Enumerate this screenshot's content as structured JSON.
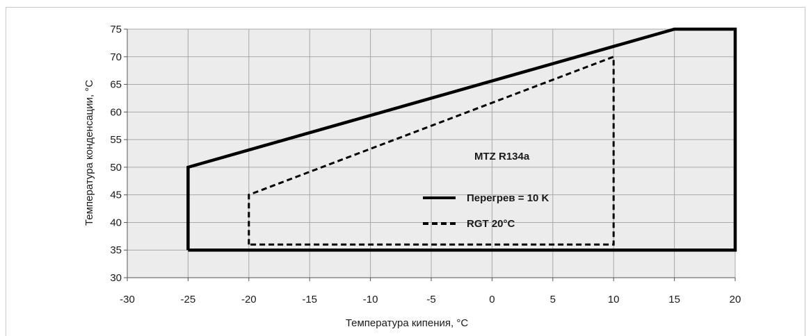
{
  "chart_data": {
    "type": "line",
    "xlabel": "Температура кипения, °C",
    "ylabel": "Температура конденсации, °C",
    "xlim": [
      -30,
      20
    ],
    "ylim": [
      30,
      75
    ],
    "xticks": [
      -30,
      -25,
      -20,
      -15,
      -10,
      -5,
      0,
      5,
      10,
      15,
      20
    ],
    "yticks": [
      30,
      35,
      40,
      45,
      50,
      55,
      60,
      65,
      70,
      75
    ],
    "grid": true,
    "background_color": "#ececec",
    "grid_color": "#a8a8a8",
    "annotation": "MTZ R134a",
    "legend_position": "center-right",
    "series": [
      {
        "name": "Перегрев = 10 K",
        "style": "solid",
        "x": [
          -25,
          -25,
          15,
          20,
          20,
          -25
        ],
        "y": [
          35,
          50,
          75,
          75,
          35,
          35
        ]
      },
      {
        "name": "RGT 20°C",
        "style": "dashed",
        "x": [
          -20,
          -20,
          10,
          10,
          -20
        ],
        "y": [
          36,
          45,
          70,
          36,
          36
        ]
      }
    ]
  }
}
